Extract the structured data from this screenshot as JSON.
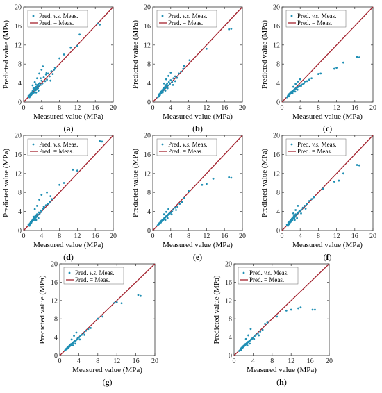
{
  "figure": {
    "meta": {
      "xlabel": "Measured value (MPa)",
      "ylabel": "Predicted  value (MPa)",
      "xticks": [
        "0",
        "4",
        "8",
        "12",
        "16",
        "20"
      ],
      "yticks": [
        "0",
        "4",
        "8",
        "12",
        "16",
        "20"
      ],
      "legend": {
        "points_prefix": "Pred. ",
        "points_italic": "v.s.",
        "points_suffix": " Meas.",
        "line": "Pred.  =   Meas."
      },
      "colors": {
        "points": "#1f8fb4",
        "line": "#a3222e",
        "axis": "#333333"
      }
    }
  },
  "chart_data": [
    {
      "type": "scatter",
      "caption": "(a)",
      "xlim": [
        0,
        20
      ],
      "ylim": [
        0,
        20
      ],
      "x": [
        1.1,
        1.3,
        1.4,
        1.5,
        1.6,
        1.7,
        1.8,
        1.9,
        2.0,
        2.1,
        2.2,
        2.3,
        2.4,
        2.5,
        2.6,
        2.7,
        2.8,
        2.9,
        3.0,
        3.1,
        3.2,
        3.3,
        3.5,
        3.6,
        3.8,
        4.0,
        4.2,
        4.5,
        4.8,
        5.0,
        5.2,
        5.5,
        5.8,
        6.2,
        6.5,
        6.8,
        7.0,
        2.0,
        2.5,
        3.0,
        3.5,
        4.0,
        2.8,
        3.3,
        2.2,
        2.7,
        3.8,
        4.3,
        5.1,
        6.0,
        8.0,
        9.0,
        10.5,
        12.0,
        12.5,
        16.5,
        17.0
      ],
      "y": [
        1.3,
        1.0,
        1.6,
        1.2,
        1.8,
        1.5,
        2.0,
        1.7,
        2.3,
        1.9,
        2.6,
        2.0,
        2.8,
        2.4,
        3.0,
        2.5,
        3.2,
        2.8,
        3.3,
        3.6,
        2.9,
        3.8,
        3.4,
        4.0,
        3.6,
        4.5,
        3.9,
        5.2,
        4.4,
        5.8,
        4.7,
        6.0,
        5.4,
        6.5,
        5.9,
        6.8,
        7.2,
        3.5,
        4.2,
        5.0,
        6.0,
        6.8,
        2.0,
        2.4,
        2.9,
        3.7,
        5.0,
        7.5,
        6.1,
        4.5,
        9.2,
        10.0,
        11.5,
        11.8,
        14.2,
        16.5,
        16.3
      ]
    },
    {
      "type": "scatter",
      "caption": "(b)",
      "xlim": [
        0,
        20
      ],
      "ylim": [
        0,
        20
      ],
      "x": [
        1.1,
        1.3,
        1.4,
        1.5,
        1.6,
        1.7,
        1.8,
        1.9,
        2.0,
        2.1,
        2.2,
        2.3,
        2.4,
        2.5,
        2.6,
        2.7,
        2.8,
        2.9,
        3.0,
        3.1,
        3.2,
        3.4,
        3.6,
        3.8,
        4.0,
        4.3,
        4.6,
        5.0,
        5.4,
        5.8,
        6.3,
        6.8,
        2.5,
        3.0,
        3.5,
        4.0,
        2.2,
        2.8,
        3.3,
        4.5,
        5.0,
        7.0,
        8.2,
        12.0,
        17.0,
        17.5
      ],
      "y": [
        1.0,
        1.4,
        1.2,
        1.7,
        1.5,
        2.0,
        1.8,
        2.2,
        2.1,
        2.5,
        2.3,
        2.7,
        2.6,
        3.0,
        2.8,
        3.1,
        3.3,
        3.0,
        3.6,
        3.4,
        3.9,
        3.5,
        4.2,
        3.8,
        4.6,
        4.2,
        5.0,
        5.4,
        5.1,
        6.0,
        6.4,
        7.0,
        3.9,
        4.8,
        5.5,
        6.2,
        2.0,
        2.4,
        2.9,
        3.6,
        4.4,
        7.6,
        8.8,
        11.2,
        15.3,
        15.4
      ]
    },
    {
      "type": "scatter",
      "caption": "(c)",
      "xlim": [
        0,
        20
      ],
      "ylim": [
        0,
        20
      ],
      "x": [
        1.1,
        1.3,
        1.4,
        1.5,
        1.6,
        1.7,
        1.8,
        1.9,
        2.0,
        2.1,
        2.2,
        2.3,
        2.4,
        2.5,
        2.6,
        2.7,
        2.8,
        3.0,
        3.2,
        3.4,
        3.6,
        3.8,
        4.0,
        4.2,
        4.5,
        4.8,
        5.0,
        5.5,
        6.0,
        6.5,
        2.5,
        3.0,
        3.5,
        4.0,
        2.3,
        2.9,
        3.4,
        8.0,
        8.5,
        11.5,
        12.0,
        13.5,
        16.5,
        17.0
      ],
      "y": [
        1.0,
        1.3,
        1.5,
        1.2,
        1.7,
        1.6,
        1.9,
        1.8,
        2.1,
        1.9,
        2.2,
        2.0,
        2.4,
        2.3,
        2.5,
        2.6,
        2.7,
        2.8,
        3.0,
        3.1,
        3.2,
        3.3,
        3.5,
        3.4,
        3.7,
        3.9,
        4.3,
        4.4,
        4.7,
        5.0,
        3.2,
        3.8,
        4.3,
        4.8,
        1.8,
        2.2,
        2.6,
        5.9,
        6.0,
        7.0,
        7.2,
        8.3,
        9.5,
        9.4
      ]
    },
    {
      "type": "scatter",
      "caption": "(d)",
      "xlim": [
        0,
        20
      ],
      "ylim": [
        0,
        20
      ],
      "x": [
        1.1,
        1.3,
        1.4,
        1.5,
        1.6,
        1.7,
        1.8,
        1.9,
        2.0,
        2.1,
        2.2,
        2.3,
        2.4,
        2.5,
        2.6,
        2.7,
        2.8,
        2.9,
        3.0,
        3.2,
        3.4,
        3.6,
        3.8,
        4.0,
        4.3,
        4.6,
        5.0,
        5.4,
        5.8,
        6.3,
        2.5,
        3.0,
        3.5,
        4.0,
        2.8,
        3.3,
        2.2,
        4.5,
        5.2,
        6.0,
        8.0,
        9.0,
        11.0,
        12.0,
        17.0,
        17.5
      ],
      "y": [
        1.2,
        1.0,
        1.5,
        1.3,
        1.8,
        1.6,
        2.0,
        1.9,
        2.3,
        2.1,
        2.5,
        2.2,
        2.8,
        2.5,
        3.0,
        2.7,
        3.2,
        2.9,
        3.4,
        3.3,
        3.8,
        3.6,
        4.2,
        3.9,
        4.6,
        4.9,
        5.3,
        5.6,
        6.0,
        6.6,
        4.5,
        5.2,
        6.5,
        7.5,
        2.2,
        2.6,
        2.9,
        5.0,
        8.0,
        7.2,
        9.6,
        10.0,
        12.8,
        12.6,
        18.8,
        18.7
      ]
    },
    {
      "type": "scatter",
      "caption": "(e)",
      "xlim": [
        0,
        20
      ],
      "ylim": [
        0,
        20
      ],
      "x": [
        1.1,
        1.3,
        1.4,
        1.5,
        1.6,
        1.7,
        1.8,
        1.9,
        2.0,
        2.1,
        2.2,
        2.3,
        2.4,
        2.5,
        2.6,
        2.7,
        2.8,
        2.9,
        3.0,
        3.2,
        3.4,
        3.6,
        3.8,
        4.0,
        4.3,
        4.6,
        5.0,
        5.5,
        6.0,
        6.5,
        2.5,
        3.0,
        3.5,
        2.8,
        3.3,
        4.2,
        5.2,
        7.0,
        8.0,
        11.0,
        12.0,
        13.5,
        17.0,
        17.5
      ],
      "y": [
        1.1,
        1.3,
        1.5,
        1.4,
        1.6,
        1.8,
        1.7,
        2.0,
        2.1,
        2.0,
        2.3,
        2.2,
        2.5,
        2.4,
        2.6,
        2.7,
        2.8,
        2.9,
        3.0,
        3.1,
        3.3,
        3.5,
        3.6,
        3.8,
        4.0,
        4.4,
        4.8,
        5.0,
        5.6,
        6.0,
        3.4,
        3.9,
        4.5,
        2.2,
        2.6,
        3.4,
        4.3,
        6.8,
        8.3,
        9.6,
        9.8,
        10.9,
        11.2,
        11.1
      ]
    },
    {
      "type": "scatter",
      "caption": "(f)",
      "xlim": [
        0,
        20
      ],
      "ylim": [
        0,
        20
      ],
      "x": [
        1.1,
        1.3,
        1.4,
        1.5,
        1.6,
        1.7,
        1.8,
        1.9,
        2.0,
        2.1,
        2.2,
        2.3,
        2.4,
        2.5,
        2.6,
        2.7,
        2.8,
        2.9,
        3.0,
        3.2,
        3.4,
        3.6,
        3.8,
        4.0,
        4.3,
        4.6,
        5.0,
        5.5,
        6.0,
        6.5,
        2.5,
        3.0,
        3.5,
        2.8,
        3.3,
        4.2,
        5.2,
        7.0,
        9.0,
        11.5,
        12.5,
        13.5,
        16.5,
        17.0
      ],
      "y": [
        1.2,
        1.0,
        1.6,
        1.3,
        1.8,
        1.5,
        2.0,
        1.8,
        2.3,
        2.0,
        2.5,
        2.2,
        2.7,
        2.5,
        3.0,
        2.6,
        3.2,
        2.9,
        3.4,
        3.3,
        3.6,
        3.8,
        4.0,
        4.2,
        4.4,
        4.8,
        5.2,
        5.6,
        6.2,
        6.6,
        3.6,
        4.3,
        5.2,
        2.2,
        2.6,
        3.6,
        4.6,
        7.0,
        8.8,
        10.3,
        10.5,
        12.0,
        13.8,
        13.7
      ]
    },
    {
      "type": "scatter",
      "caption": "(g)",
      "xlim": [
        0,
        20
      ],
      "ylim": [
        0,
        20
      ],
      "x": [
        1.1,
        1.3,
        1.4,
        1.5,
        1.6,
        1.7,
        1.8,
        1.9,
        2.0,
        2.1,
        2.2,
        2.3,
        2.4,
        2.5,
        2.6,
        2.7,
        2.8,
        2.9,
        3.0,
        3.2,
        3.4,
        3.6,
        3.8,
        4.0,
        4.3,
        4.6,
        5.0,
        5.5,
        6.0,
        2.5,
        3.0,
        3.5,
        2.8,
        3.3,
        4.2,
        5.2,
        6.5,
        8.0,
        9.0,
        11.5,
        12.0,
        13.0,
        16.5,
        17.0
      ],
      "y": [
        1.1,
        1.3,
        1.5,
        1.4,
        1.7,
        1.6,
        1.9,
        1.8,
        2.1,
        2.0,
        2.3,
        2.2,
        2.5,
        2.4,
        2.6,
        2.7,
        2.8,
        2.9,
        3.0,
        3.2,
        3.3,
        3.5,
        3.8,
        3.9,
        4.2,
        4.5,
        4.9,
        5.4,
        5.8,
        3.5,
        4.3,
        5.0,
        2.2,
        2.6,
        3.5,
        4.5,
        6.0,
        8.0,
        8.5,
        11.5,
        11.6,
        11.4,
        13.2,
        13.0
      ]
    },
    {
      "type": "scatter",
      "caption": "(h)",
      "xlim": [
        0,
        20
      ],
      "ylim": [
        0,
        20
      ],
      "x": [
        1.1,
        1.3,
        1.4,
        1.5,
        1.6,
        1.7,
        1.8,
        1.9,
        2.0,
        2.1,
        2.2,
        2.3,
        2.4,
        2.5,
        2.6,
        2.7,
        2.8,
        2.9,
        3.0,
        3.2,
        3.4,
        3.6,
        3.8,
        4.0,
        4.3,
        4.6,
        5.0,
        5.5,
        6.0,
        2.5,
        3.0,
        3.5,
        2.8,
        3.3,
        4.2,
        5.2,
        6.5,
        7.0,
        9.0,
        11.0,
        12.0,
        13.5,
        14.0,
        16.5,
        17.0
      ],
      "y": [
        1.0,
        1.3,
        1.5,
        1.2,
        1.7,
        1.6,
        1.9,
        1.8,
        2.1,
        2.0,
        2.3,
        2.2,
        2.5,
        2.4,
        2.6,
        2.7,
        2.8,
        2.9,
        3.0,
        3.1,
        3.3,
        3.5,
        3.7,
        3.9,
        4.2,
        4.5,
        4.8,
        5.2,
        5.6,
        3.6,
        4.4,
        5.8,
        2.2,
        2.6,
        3.6,
        4.4,
        6.9,
        7.2,
        8.5,
        9.8,
        10.0,
        10.3,
        10.5,
        10.0,
        10.0
      ]
    }
  ]
}
